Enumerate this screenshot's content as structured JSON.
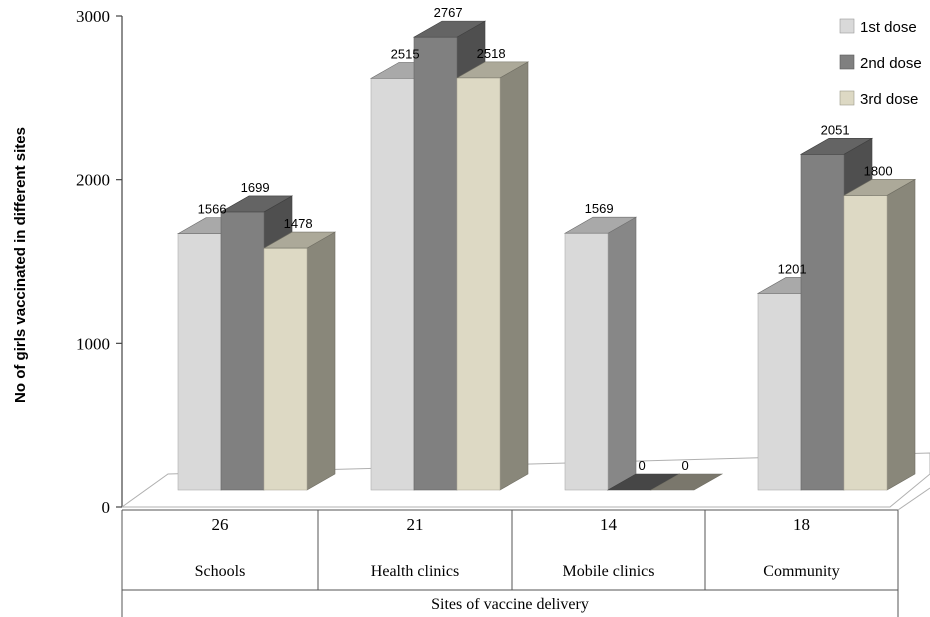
{
  "chart_data": {
    "type": "bar",
    "style": "3d-clustered-column",
    "categories": [
      "Schools",
      "Health clinics",
      "Mobile clinics",
      "Community"
    ],
    "category_counts": [
      "26",
      "21",
      "14",
      "18"
    ],
    "series": [
      {
        "name": "1st dose",
        "values": [
          1566,
          2515,
          1569,
          1201
        ],
        "color": "#d9d9d9"
      },
      {
        "name": "2nd dose",
        "values": [
          1699,
          2767,
          0,
          2051
        ],
        "color": "#808080"
      },
      {
        "name": "3rd dose",
        "values": [
          1478,
          2518,
          0,
          1800
        ],
        "color": "#ddd9c4"
      }
    ],
    "ylabel": "No of girls vaccinated in different sites",
    "xlabel": "Sites of vaccine delivery",
    "yticks": [
      0,
      1000,
      2000,
      3000
    ],
    "ylim": [
      0,
      3000
    ],
    "legend_position": "top-right",
    "grid": false
  }
}
